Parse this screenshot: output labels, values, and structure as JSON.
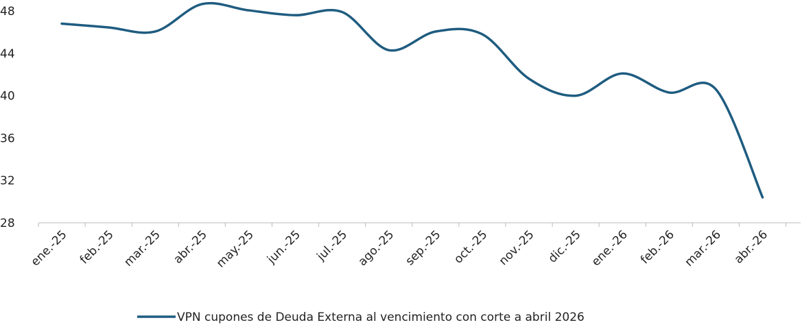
{
  "chart_data": {
    "type": "line",
    "categories": [
      "ene.-25",
      "feb.-25",
      "mar.-25",
      "abr.-25",
      "may.-25",
      "jun.-25",
      "jul.-25",
      "ago.-25",
      "sep.-25",
      "oct.-25",
      "nov.-25",
      "dic.-25",
      "ene.-26",
      "feb.-26",
      "mar.-26",
      "abr.-26"
    ],
    "series": [
      {
        "name": "VPN cupones de Deuda Externa al vencimiento con corte a abril 2026",
        "color": "#1f5c80",
        "values": [
          46.8,
          46.45,
          46.06,
          48.65,
          48.06,
          47.6,
          47.9,
          44.3,
          46.06,
          45.8,
          41.6,
          40.0,
          42.1,
          40.3,
          40.6,
          30.4
        ]
      }
    ],
    "ylim": [
      28,
      48
    ],
    "yticks": [
      28,
      32,
      36,
      40,
      44,
      48
    ],
    "grid": false,
    "legend": "bottom"
  }
}
